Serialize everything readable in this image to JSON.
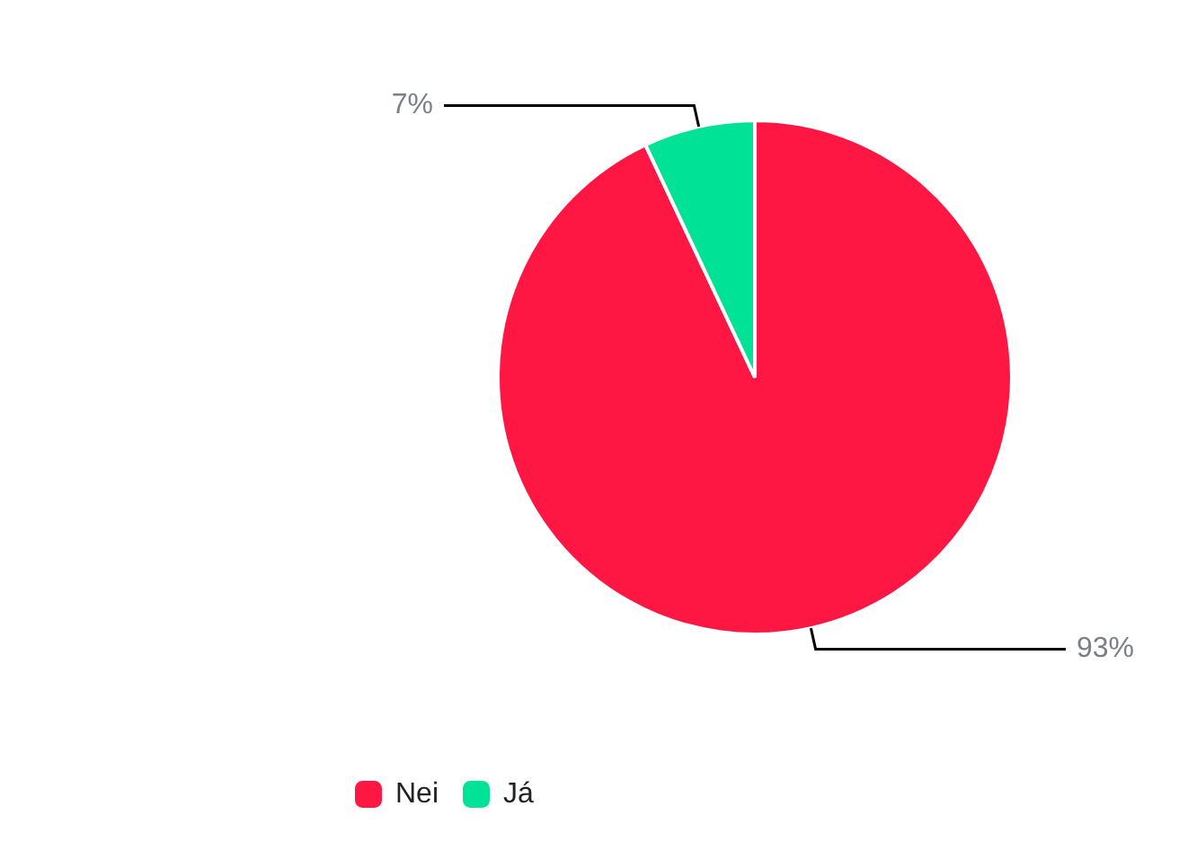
{
  "chart_data": {
    "type": "pie",
    "categories": [
      "Nei",
      "Já"
    ],
    "values": [
      93,
      7
    ],
    "colors": [
      "#ff1744",
      "#00e396"
    ],
    "value_labels": [
      "93%",
      "7%"
    ],
    "legend": "bottom left"
  }
}
